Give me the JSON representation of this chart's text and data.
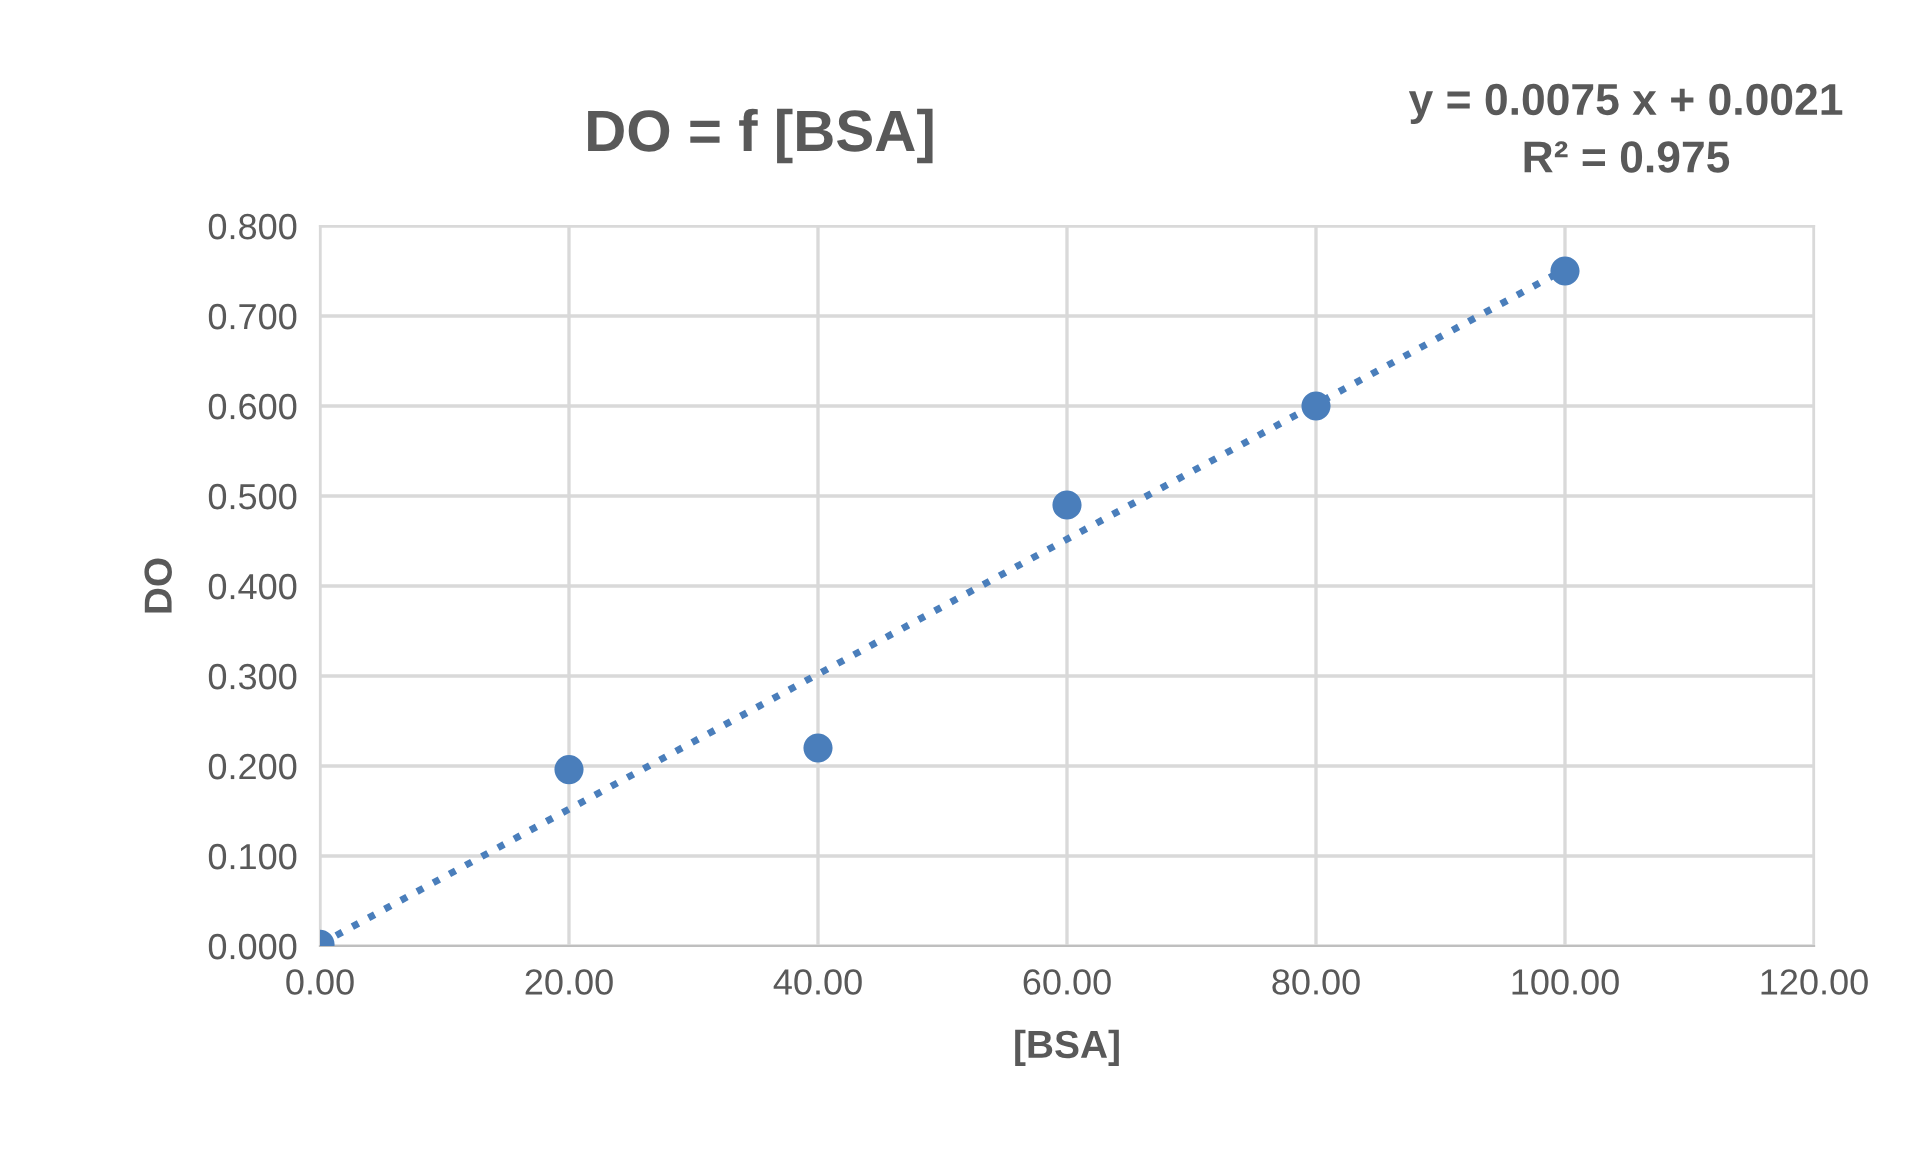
{
  "chart_data": {
    "type": "scatter",
    "title": "DO = f [BSA]",
    "xlabel": "[BSA]",
    "ylabel": "DO",
    "annotations": [
      "y = 0.0075 x + 0.0021\nR² = 0.975"
    ],
    "x": [
      0,
      20,
      40,
      60,
      80,
      100
    ],
    "series": [
      {
        "color": "#4a7ebb",
        "values": [
          0.002,
          0.196,
          0.22,
          0.49,
          0.6,
          0.75
        ],
        "marker": "circle"
      },
      {
        "type": "line",
        "color": "#4a7ebb",
        "x": [
          0,
          100
        ],
        "values": [
          0.002,
          0.752
        ],
        "line_style": "dotted"
      }
    ],
    "xlim": [
      0,
      120
    ],
    "xticks": [
      {
        "value": 0,
        "label": "0.00"
      },
      {
        "value": 20,
        "label": "20.00"
      },
      {
        "value": 40,
        "label": "40.00"
      },
      {
        "value": 60,
        "label": "60.00"
      },
      {
        "value": 80,
        "label": "80.00"
      },
      {
        "value": 100,
        "label": "100.00"
      },
      {
        "value": 120,
        "label": "120.00"
      }
    ],
    "ylim": [
      0,
      0.8
    ],
    "yticks": [
      {
        "value": 0,
        "label": "0.000"
      },
      {
        "value": 0.1,
        "label": "0.100"
      },
      {
        "value": 0.2,
        "label": "0.200"
      },
      {
        "value": 0.3,
        "label": "0.300"
      },
      {
        "value": 0.4,
        "label": "0.400"
      },
      {
        "value": 0.5,
        "label": "0.500"
      },
      {
        "value": 0.6,
        "label": "0.600"
      },
      {
        "value": 0.7,
        "label": "0.700"
      },
      {
        "value": 0.8,
        "label": "0.800"
      }
    ],
    "grid": true,
    "legend": false
  }
}
